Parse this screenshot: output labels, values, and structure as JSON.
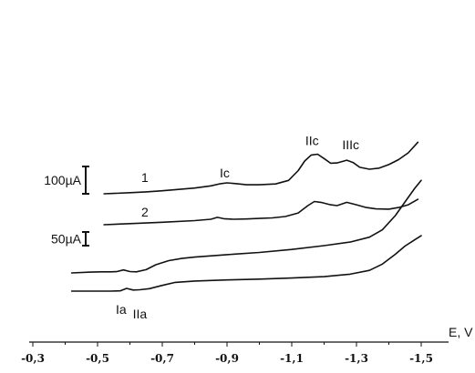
{
  "chart_data": {
    "type": "line",
    "title": "",
    "xlabel": "E, V",
    "ylabel": "",
    "x_reversed": true,
    "xlim": [
      -0.3,
      -1.5
    ],
    "xticks": [
      "-0,3",
      "-0,5",
      "-0,7",
      "-0,9",
      "-1,1",
      "-1,3",
      "-1,5"
    ],
    "xtick_values": [
      -0.3,
      -0.5,
      -0.7,
      -0.9,
      -1.1,
      -1.3,
      -1.5
    ],
    "y_units": "µA",
    "grid": false,
    "scale_bars": [
      {
        "label": "100µA",
        "value": 100
      },
      {
        "label": "50µA",
        "value": 50
      }
    ],
    "series": [
      {
        "name": "1",
        "curve_label": "1",
        "points": [
          [
            -0.52,
            0
          ],
          [
            -0.55,
            1.5
          ],
          [
            -0.6,
            4
          ],
          [
            -0.65,
            7
          ],
          [
            -0.7,
            11
          ],
          [
            -0.75,
            16
          ],
          [
            -0.8,
            21
          ],
          [
            -0.85,
            29
          ],
          [
            -0.88,
            37
          ],
          [
            -0.9,
            40
          ],
          [
            -0.93,
            37
          ],
          [
            -0.96,
            33
          ],
          [
            -1.0,
            33
          ],
          [
            -1.05,
            36
          ],
          [
            -1.09,
            49
          ],
          [
            -1.12,
            85
          ],
          [
            -1.14,
            120
          ],
          [
            -1.16,
            142
          ],
          [
            -1.18,
            145
          ],
          [
            -1.2,
            129
          ],
          [
            -1.22,
            112
          ],
          [
            -1.24,
            113
          ],
          [
            -1.27,
            123
          ],
          [
            -1.29,
            114
          ],
          [
            -1.31,
            97
          ],
          [
            -1.34,
            90
          ],
          [
            -1.37,
            94
          ],
          [
            -1.4,
            107
          ],
          [
            -1.43,
            125
          ],
          [
            -1.46,
            150
          ],
          [
            -1.49,
            189
          ]
        ]
      },
      {
        "name": "2",
        "curve_label": "2",
        "points": [
          [
            -0.52,
            0
          ],
          [
            -0.6,
            4
          ],
          [
            -0.7,
            9
          ],
          [
            -0.8,
            15
          ],
          [
            -0.85,
            20
          ],
          [
            -0.87,
            27
          ],
          [
            -0.89,
            22
          ],
          [
            -0.92,
            20
          ],
          [
            -0.96,
            21
          ],
          [
            -1.0,
            23
          ],
          [
            -1.04,
            25
          ],
          [
            -1.08,
            30
          ],
          [
            -1.12,
            43
          ],
          [
            -1.15,
            70
          ],
          [
            -1.17,
            85
          ],
          [
            -1.19,
            82
          ],
          [
            -1.22,
            73
          ],
          [
            -1.24,
            70
          ],
          [
            -1.27,
            82
          ],
          [
            -1.3,
            73
          ],
          [
            -1.33,
            63
          ],
          [
            -1.36,
            58
          ],
          [
            -1.4,
            57
          ],
          [
            -1.43,
            63
          ],
          [
            -1.46,
            73
          ],
          [
            -1.49,
            93
          ]
        ]
      },
      {
        "name": "",
        "points": [
          [
            -0.42,
            0
          ],
          [
            -0.48,
            3
          ],
          [
            -0.51,
            4
          ],
          [
            -0.54,
            4
          ],
          [
            -0.56,
            5
          ],
          [
            -0.58,
            11
          ],
          [
            -0.6,
            5
          ],
          [
            -0.62,
            4
          ],
          [
            -0.65,
            12
          ],
          [
            -0.68,
            30
          ],
          [
            -0.72,
            45
          ],
          [
            -0.76,
            53
          ],
          [
            -0.8,
            58
          ],
          [
            -0.9,
            67
          ],
          [
            -1.0,
            75
          ],
          [
            -1.1,
            86
          ],
          [
            -1.2,
            100
          ],
          [
            -1.28,
            113
          ],
          [
            -1.34,
            131
          ],
          [
            -1.38,
            158
          ],
          [
            -1.42,
            210
          ],
          [
            -1.45,
            260
          ],
          [
            -1.48,
            310
          ],
          [
            -1.5,
            339
          ]
        ]
      },
      {
        "name": "",
        "points": [
          [
            -0.42,
            0
          ],
          [
            -0.48,
            0
          ],
          [
            -0.54,
            0
          ],
          [
            -0.57,
            1
          ],
          [
            -0.59,
            10
          ],
          [
            -0.61,
            4
          ],
          [
            -0.63,
            5
          ],
          [
            -0.66,
            9
          ],
          [
            -0.7,
            21
          ],
          [
            -0.74,
            32
          ],
          [
            -0.8,
            37
          ],
          [
            -0.9,
            41
          ],
          [
            -1.0,
            44
          ],
          [
            -1.1,
            48
          ],
          [
            -1.2,
            53
          ],
          [
            -1.28,
            62
          ],
          [
            -1.34,
            76
          ],
          [
            -1.38,
            99
          ],
          [
            -1.42,
            135
          ],
          [
            -1.45,
            165
          ],
          [
            -1.48,
            188
          ],
          [
            -1.5,
            203
          ]
        ]
      }
    ],
    "annotations": [
      {
        "text": "Ic",
        "x": -0.9,
        "y": 40
      },
      {
        "text": "IIc",
        "x": -1.17,
        "y": 145
      },
      {
        "text": "IIIc",
        "x": -1.27,
        "y": 123
      },
      {
        "text": "Ia",
        "x": -0.59,
        "y": 10
      },
      {
        "text": "IIa",
        "x": -0.62,
        "y": 4
      }
    ]
  }
}
